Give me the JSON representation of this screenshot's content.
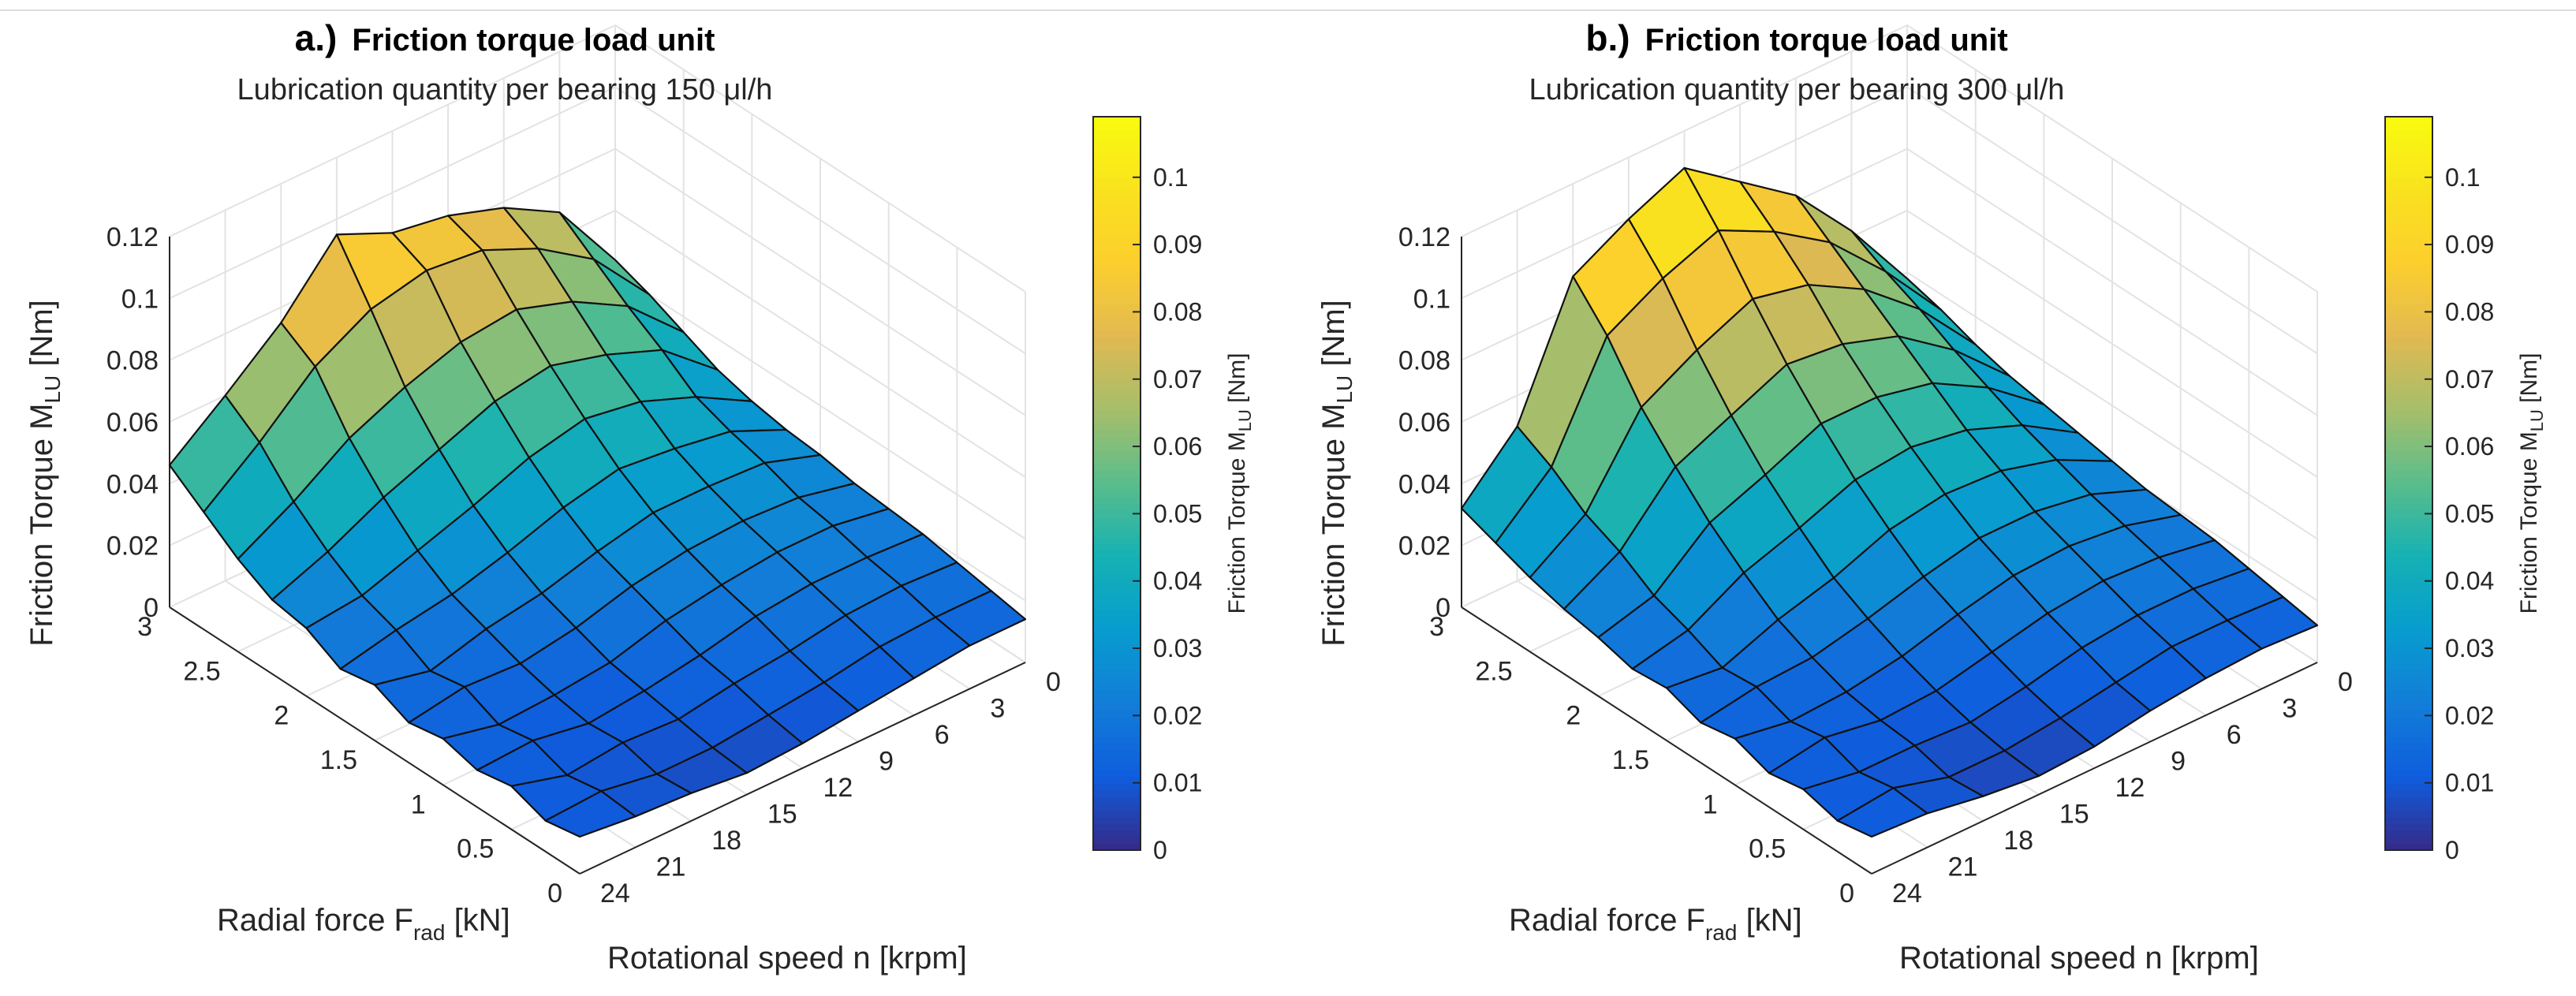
{
  "chart_data": [
    {
      "type": "surface3d",
      "panel_label": "a.)",
      "title": "Friction torque load unit",
      "subtitle": "Lubrication quantity per bearing 150 μl/h",
      "zlabel_main": "Friction Torque M",
      "zlabel_sub": "LU",
      "zlabel_unit": " [Nm]",
      "xlabel": "Rotational speed n [krpm]",
      "ylabel_main": "Radial force F",
      "ylabel_sub": "rad",
      "ylabel_unit": " [kN]",
      "colorbar_label_main": "Friction Torque M",
      "colorbar_label_sub": "LU",
      "colorbar_label_unit": " [Nm]",
      "colormap": "parula",
      "color_limits": [
        0,
        0.109
      ],
      "speed_ticks": [
        "0",
        "3",
        "6",
        "9",
        "12",
        "15",
        "18",
        "21",
        "24"
      ],
      "force_ticks": [
        "0",
        "0.5",
        "1",
        "1.5",
        "2",
        "2.5",
        "3"
      ],
      "z_ticks": [
        "0",
        "0.02",
        "0.04",
        "0.06",
        "0.08",
        "0.1",
        "0.12"
      ],
      "colorbar_ticks": [
        "0",
        "0.01",
        "0.02",
        "0.03",
        "0.04",
        "0.05",
        "0.06",
        "0.07",
        "0.08",
        "0.09",
        "0.1"
      ],
      "speed_values_krpm": [
        0,
        3,
        6,
        9,
        12,
        15,
        18,
        21,
        24
      ],
      "force_values_kN": [
        0,
        0.25,
        0.5,
        0.75,
        1.0,
        1.25,
        1.5,
        1.75,
        2.0,
        2.25,
        2.5,
        2.75,
        3.0
      ],
      "zlim": [
        0,
        0.12
      ],
      "torque_Nm": [
        [
          0.014,
          0.016,
          0.018,
          0.02,
          0.021,
          0.022,
          0.024,
          0.025,
          0.027,
          0.03,
          0.035,
          0.04,
          0.044
        ],
        [
          0.014,
          0.016,
          0.019,
          0.021,
          0.024,
          0.026,
          0.03,
          0.033,
          0.037,
          0.045,
          0.052,
          0.06,
          0.068
        ],
        [
          0.012,
          0.015,
          0.018,
          0.021,
          0.024,
          0.027,
          0.031,
          0.036,
          0.044,
          0.052,
          0.062,
          0.072,
          0.078
        ],
        [
          0.01,
          0.012,
          0.015,
          0.019,
          0.022,
          0.026,
          0.031,
          0.038,
          0.047,
          0.057,
          0.068,
          0.08,
          0.084
        ],
        [
          0.008,
          0.01,
          0.013,
          0.015,
          0.019,
          0.023,
          0.027,
          0.034,
          0.043,
          0.054,
          0.066,
          0.082,
          0.087
        ],
        [
          0.007,
          0.008,
          0.01,
          0.012,
          0.014,
          0.018,
          0.022,
          0.028,
          0.036,
          0.047,
          0.06,
          0.078,
          0.095
        ],
        [
          0.009,
          0.008,
          0.011,
          0.01,
          0.012,
          0.015,
          0.019,
          0.023,
          0.03,
          0.04,
          0.052,
          0.068,
          0.075
        ],
        [
          0.01,
          0.011,
          0.009,
          0.013,
          0.011,
          0.016,
          0.014,
          0.02,
          0.024,
          0.031,
          0.04,
          0.052,
          0.06
        ],
        [
          0.012,
          0.01,
          0.014,
          0.012,
          0.015,
          0.013,
          0.018,
          0.016,
          0.022,
          0.024,
          0.03,
          0.038,
          0.046
        ]
      ]
    },
    {
      "type": "surface3d",
      "panel_label": "b.)",
      "title": "Friction torque load unit",
      "subtitle": "Lubrication quantity per bearing 300 μl/h",
      "zlabel_main": "Friction Torque M",
      "zlabel_sub": "LU",
      "zlabel_unit": " [Nm]",
      "xlabel": "Rotational speed n [krpm]",
      "ylabel_main": "Radial force F",
      "ylabel_sub": "rad",
      "ylabel_unit": " [kN]",
      "colorbar_label_main": "Friction Torque M",
      "colorbar_label_sub": "LU",
      "colorbar_label_unit": " [Nm]",
      "colormap": "parula",
      "color_limits": [
        0,
        0.109
      ],
      "speed_ticks": [
        "0",
        "3",
        "6",
        "9",
        "12",
        "15",
        "18",
        "21",
        "24"
      ],
      "force_ticks": [
        "0",
        "0.5",
        "1",
        "1.5",
        "2",
        "2.5",
        "3"
      ],
      "z_ticks": [
        "0",
        "0.02",
        "0.04",
        "0.06",
        "0.08",
        "0.1",
        "0.12"
      ],
      "colorbar_ticks": [
        "0",
        "0.01",
        "0.02",
        "0.03",
        "0.04",
        "0.05",
        "0.06",
        "0.07",
        "0.08",
        "0.09",
        "0.1"
      ],
      "speed_values_krpm": [
        0,
        3,
        6,
        9,
        12,
        15,
        18,
        21,
        24
      ],
      "force_values_kN": [
        0,
        0.25,
        0.5,
        0.75,
        1.0,
        1.25,
        1.5,
        1.75,
        2.0,
        2.25,
        2.5,
        2.75,
        3.0
      ],
      "zlim": [
        0,
        0.12
      ],
      "torque_Nm": [
        [
          0.012,
          0.014,
          0.016,
          0.018,
          0.019,
          0.02,
          0.022,
          0.024,
          0.026,
          0.028,
          0.031,
          0.035,
          0.038
        ],
        [
          0.013,
          0.015,
          0.018,
          0.021,
          0.024,
          0.027,
          0.031,
          0.035,
          0.04,
          0.045,
          0.051,
          0.056,
          0.062
        ],
        [
          0.012,
          0.015,
          0.018,
          0.022,
          0.026,
          0.03,
          0.036,
          0.042,
          0.05,
          0.058,
          0.066,
          0.074,
          0.082
        ],
        [
          0.01,
          0.012,
          0.016,
          0.02,
          0.025,
          0.03,
          0.037,
          0.045,
          0.054,
          0.064,
          0.076,
          0.086,
          0.095
        ],
        [
          0.007,
          0.009,
          0.012,
          0.016,
          0.021,
          0.026,
          0.034,
          0.043,
          0.054,
          0.066,
          0.08,
          0.095,
          0.108
        ],
        [
          0.006,
          0.007,
          0.009,
          0.012,
          0.016,
          0.021,
          0.027,
          0.036,
          0.046,
          0.058,
          0.072,
          0.088,
          0.1
        ],
        [
          0.008,
          0.007,
          0.01,
          0.011,
          0.013,
          0.017,
          0.022,
          0.03,
          0.039,
          0.05,
          0.062,
          0.078,
          0.09
        ],
        [
          0.011,
          0.012,
          0.01,
          0.014,
          0.012,
          0.016,
          0.015,
          0.02,
          0.024,
          0.031,
          0.036,
          0.044,
          0.05
        ],
        [
          0.012,
          0.01,
          0.013,
          0.011,
          0.015,
          0.013,
          0.017,
          0.016,
          0.019,
          0.021,
          0.024,
          0.028,
          0.032
        ]
      ]
    }
  ]
}
